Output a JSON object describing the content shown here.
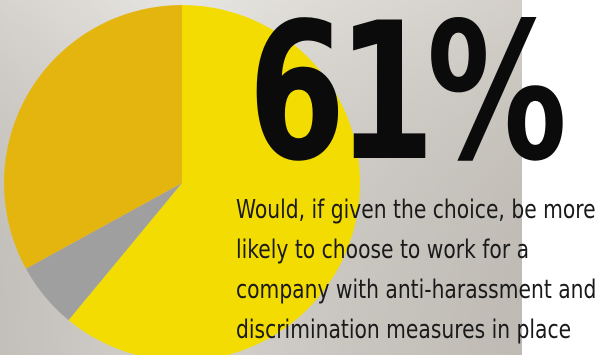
{
  "colors": {
    "background_light": "#d9d6d0",
    "background_mid": "#c4c1bb",
    "slice_main": "#f2dc02",
    "slice_gray": "#9f9f9f",
    "slice_gold": "#e5b50f",
    "text_dark": "#0b0b0b"
  },
  "chart_data": {
    "type": "pie",
    "title": "",
    "slices": [
      {
        "label": "",
        "value": 61,
        "color": "#f2dc02"
      },
      {
        "label": "",
        "value": 6,
        "color": "#9f9f9f"
      },
      {
        "label": "",
        "value": 33,
        "color": "#e5b50f"
      }
    ]
  },
  "headline": {
    "stat": "61%",
    "caption_lines": [
      "Would, if given the choice, be more",
      "likely to choose to work for a",
      "company with anti-harassment and",
      "discrimination measures in place"
    ]
  }
}
